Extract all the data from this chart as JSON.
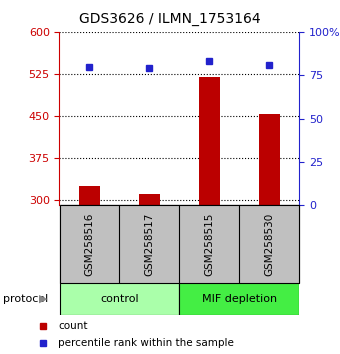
{
  "title": "GDS3626 / ILMN_1753164",
  "samples": [
    "GSM258516",
    "GSM258517",
    "GSM258515",
    "GSM258530"
  ],
  "counts": [
    325,
    310,
    520,
    453
  ],
  "percentile_ranks": [
    80,
    79,
    83,
    81
  ],
  "ylim_left": [
    290,
    600
  ],
  "ylim_right": [
    0,
    100
  ],
  "yticks_left": [
    300,
    375,
    450,
    525,
    600
  ],
  "yticks_right": [
    0,
    25,
    50,
    75,
    100
  ],
  "bar_color": "#bb0000",
  "dot_color": "#2222cc",
  "bar_width": 0.35,
  "groups": [
    {
      "label": "control",
      "indices": [
        0,
        1
      ],
      "color": "#aaffaa"
    },
    {
      "label": "MIF depletion",
      "indices": [
        2,
        3
      ],
      "color": "#44ee44"
    }
  ],
  "protocol_label": "protocol",
  "left_axis_color": "#cc0000",
  "right_axis_color": "#2222cc",
  "background_color": "#ffffff",
  "sample_box_color": "#c0c0c0",
  "legend_items": [
    {
      "label": "count",
      "color": "#bb0000"
    },
    {
      "label": "percentile rank within the sample",
      "color": "#2222cc"
    }
  ],
  "fig_width": 3.4,
  "fig_height": 3.54,
  "dpi": 100
}
